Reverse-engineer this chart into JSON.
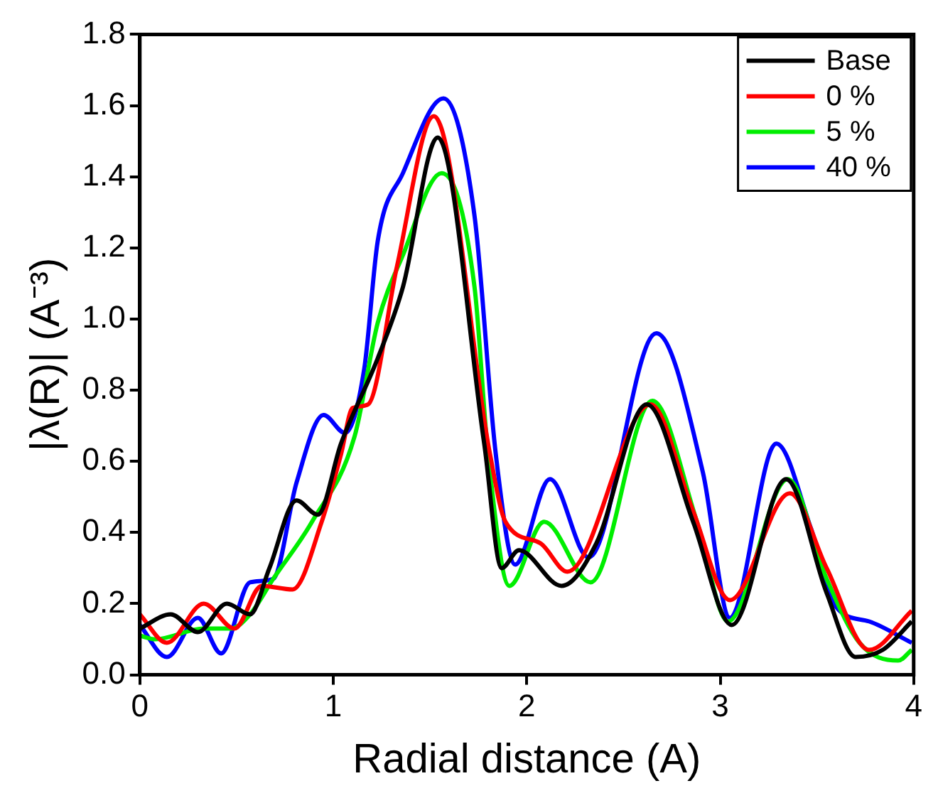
{
  "chart_data": {
    "type": "line",
    "xlabel": "Radial distance (A)",
    "ylabel": "|λ(R)| (A⁻³)",
    "xlim": [
      0,
      4
    ],
    "xticks": [
      0,
      1,
      2,
      3,
      4
    ],
    "ylim": [
      0,
      1.8
    ],
    "yticks": [
      {
        "value": 0,
        "label": "0.0"
      },
      0.2,
      0.4,
      0.6,
      0.8,
      {
        "value": 1,
        "label": "1.0"
      },
      1.2,
      1.4,
      1.6,
      1.8
    ],
    "grid": false,
    "legend": "top right",
    "marker": "none",
    "line_style": "solid",
    "series": [
      {
        "name": "Base",
        "color": "#000000",
        "x": [
          0,
          0.16,
          0.3,
          0.45,
          0.57,
          0.67,
          0.81,
          0.92,
          1.04,
          1.23,
          1.36,
          1.54,
          1.78,
          1.87,
          1.96,
          2.18,
          2.36,
          2.62,
          2.86,
          3.06,
          3.34,
          3.55,
          3.7,
          3.84,
          3.99
        ],
        "values": [
          0.13,
          0.17,
          0.12,
          0.2,
          0.17,
          0.3,
          0.49,
          0.45,
          0.65,
          0.89,
          1.09,
          1.51,
          0.65,
          0.3,
          0.35,
          0.25,
          0.37,
          0.76,
          0.43,
          0.14,
          0.55,
          0.23,
          0.05,
          0.07,
          0.15
        ]
      },
      {
        "name": "0 %",
        "color": "#ff0000",
        "x": [
          0,
          0.14,
          0.33,
          0.49,
          0.63,
          0.79,
          0.94,
          1.04,
          1.1,
          1.18,
          1.33,
          1.52,
          1.81,
          1.89,
          2.07,
          2.21,
          2.64,
          2.86,
          3.05,
          3.36,
          3.55,
          3.77,
          3.99
        ],
        "values": [
          0.17,
          0.09,
          0.2,
          0.13,
          0.25,
          0.24,
          0.43,
          0.62,
          0.75,
          0.76,
          1.15,
          1.57,
          0.62,
          0.43,
          0.37,
          0.29,
          0.76,
          0.46,
          0.21,
          0.51,
          0.3,
          0.07,
          0.18
        ]
      },
      {
        "name": "5 %",
        "color": "#00ee00",
        "x": [
          0,
          0.08,
          0.33,
          0.47,
          0.57,
          0.69,
          0.89,
          1.11,
          1.23,
          1.36,
          1.56,
          1.73,
          1.8,
          1.91,
          2.09,
          2.33,
          2.65,
          2.88,
          3.04,
          3.35,
          3.55,
          3.72,
          3.92,
          3.99
        ],
        "values": [
          0.11,
          0.1,
          0.13,
          0.13,
          0.17,
          0.27,
          0.43,
          0.67,
          0.99,
          1.18,
          1.41,
          1.09,
          0.62,
          0.25,
          0.43,
          0.26,
          0.77,
          0.43,
          0.15,
          0.55,
          0.27,
          0.09,
          0.04,
          0.07
        ]
      },
      {
        "name": "40 %",
        "color": "#0000ff",
        "x": [
          0,
          0.14,
          0.3,
          0.42,
          0.57,
          0.69,
          0.81,
          0.95,
          1.06,
          1.16,
          1.23,
          1.36,
          1.57,
          1.73,
          1.84,
          1.94,
          2.12,
          2.32,
          2.67,
          2.91,
          3.05,
          3.29,
          3.47,
          3.6,
          3.77,
          3.99
        ],
        "values": [
          0.14,
          0.05,
          0.16,
          0.06,
          0.26,
          0.27,
          0.54,
          0.73,
          0.68,
          0.86,
          1.22,
          1.41,
          1.62,
          1.29,
          0.62,
          0.31,
          0.55,
          0.33,
          0.96,
          0.57,
          0.16,
          0.65,
          0.41,
          0.19,
          0.15,
          0.09
        ]
      }
    ]
  }
}
